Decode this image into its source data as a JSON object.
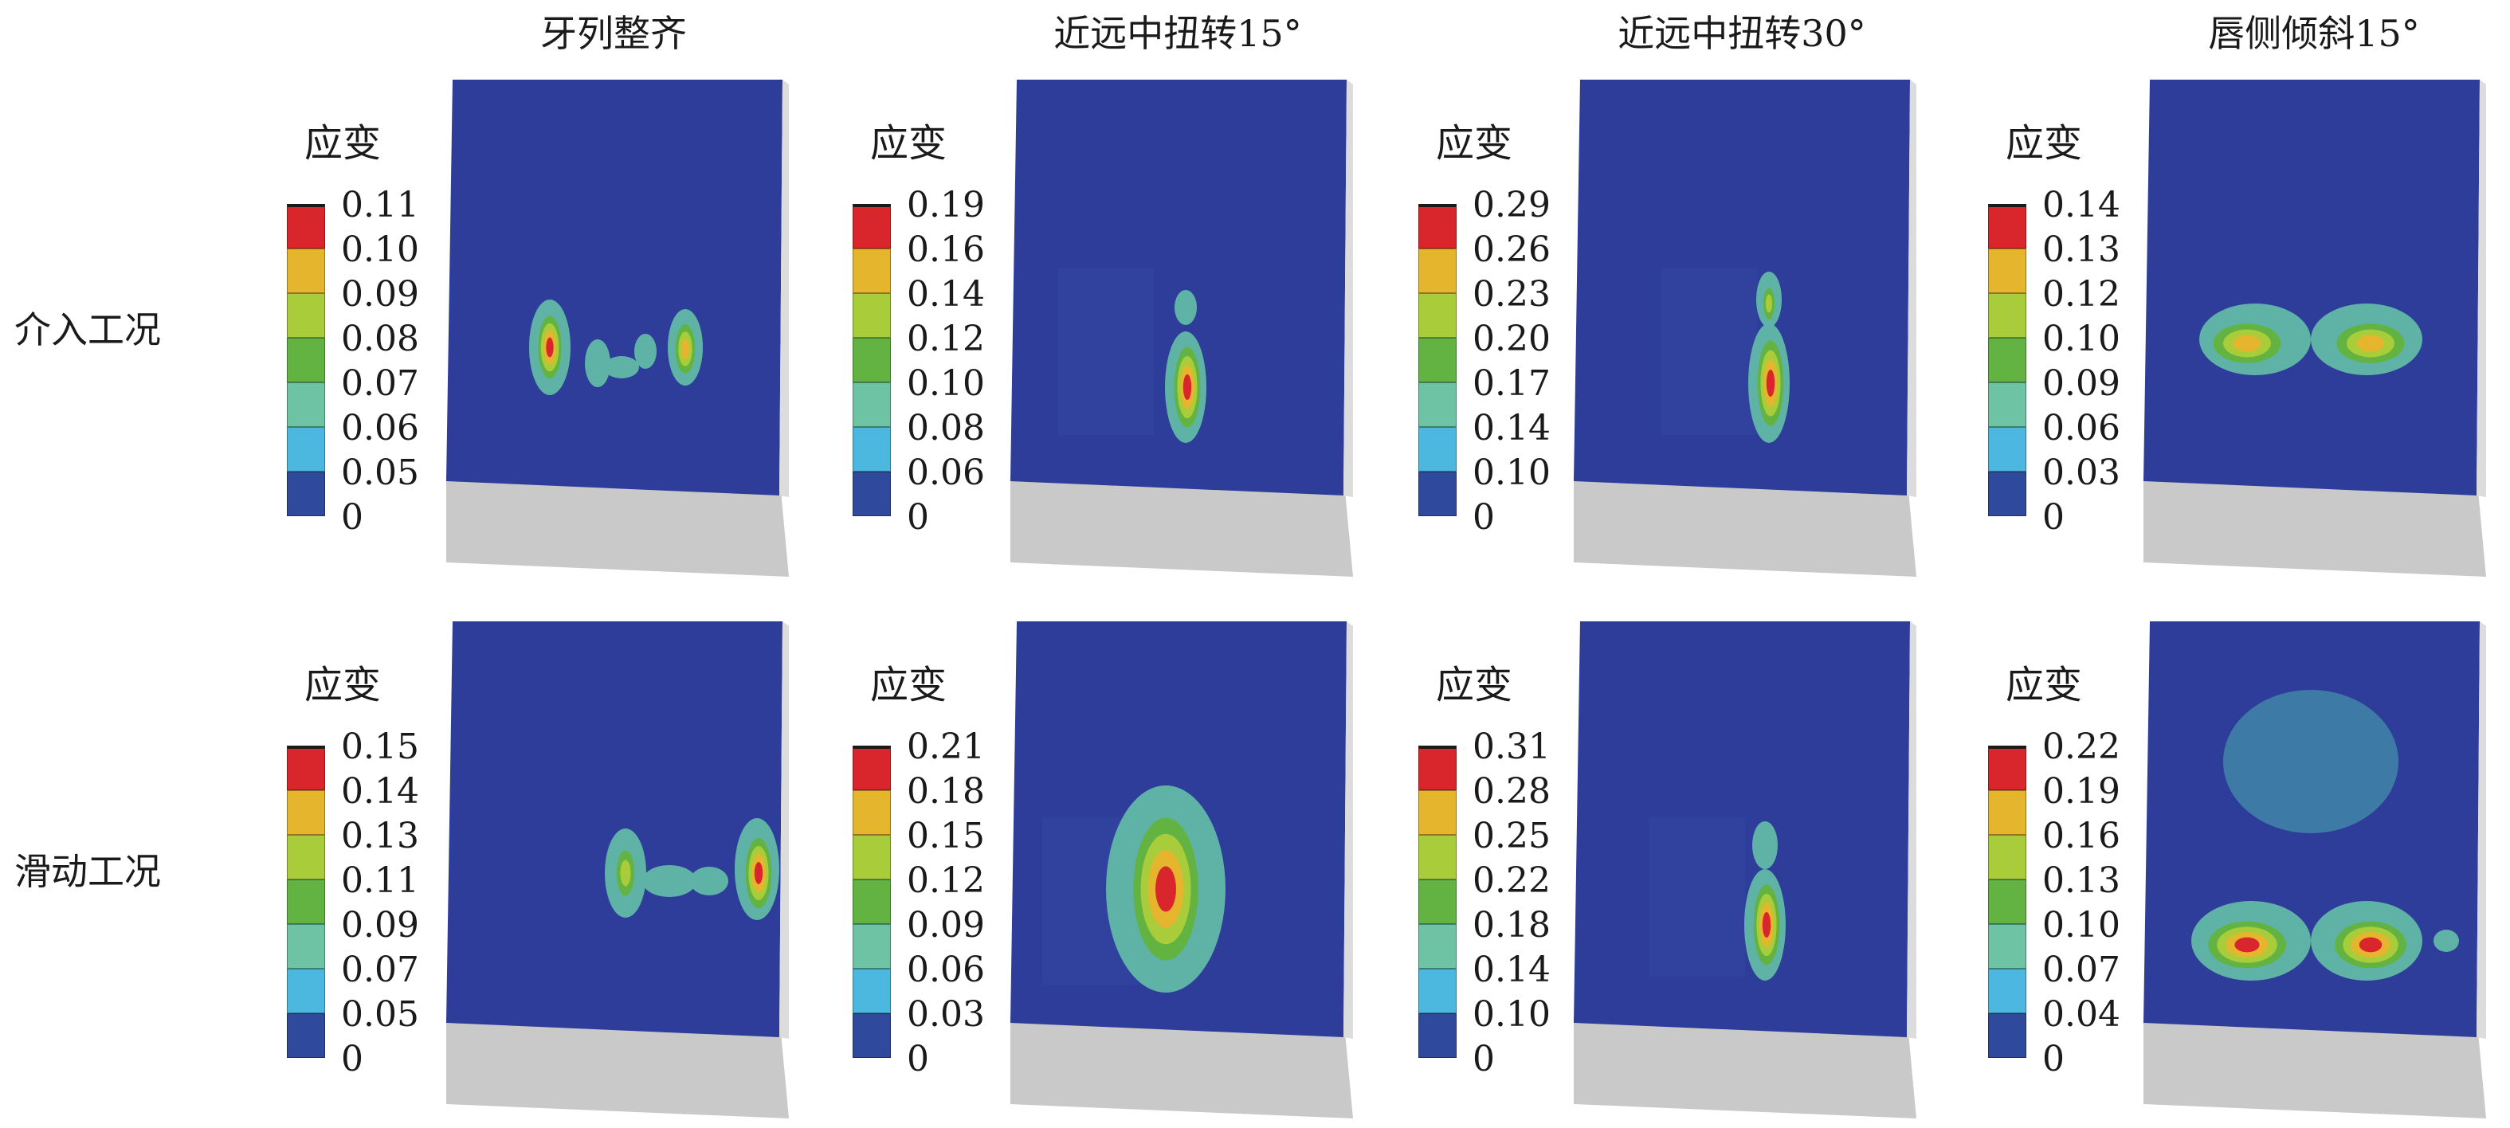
{
  "columns": [
    "牙列整齐",
    "近远中扭转15°",
    "近远中扭转30°",
    "唇侧倾斜15°"
  ],
  "rows": [
    "介入工况",
    "滑动工况"
  ],
  "legend_title": "应变",
  "colors": {
    "background_blue": "#2e3c9a",
    "base_gray": "#c9c9c9",
    "scale": [
      "#2f4a9c",
      "#4cb8e0",
      "#6dc3a4",
      "#62b342",
      "#a8cc3a",
      "#e6b52e",
      "#d8262c"
    ]
  },
  "panels": [
    {
      "id": "r1c1",
      "ticks": [
        "0.11",
        "0.10",
        "0.09",
        "0.08",
        "0.07",
        "0.06",
        "0.05",
        "0"
      ]
    },
    {
      "id": "r1c2",
      "ticks": [
        "0.19",
        "0.16",
        "0.14",
        "0.12",
        "0.10",
        "0.08",
        "0.06",
        "0"
      ]
    },
    {
      "id": "r1c3",
      "ticks": [
        "0.29",
        "0.26",
        "0.23",
        "0.20",
        "0.17",
        "0.14",
        "0.10",
        "0"
      ]
    },
    {
      "id": "r1c4",
      "ticks": [
        "0.14",
        "0.13",
        "0.12",
        "0.10",
        "0.09",
        "0.06",
        "0.03",
        "0"
      ]
    },
    {
      "id": "r2c1",
      "ticks": [
        "0.15",
        "0.14",
        "0.13",
        "0.11",
        "0.09",
        "0.07",
        "0.05",
        "0"
      ]
    },
    {
      "id": "r2c2",
      "ticks": [
        "0.21",
        "0.18",
        "0.15",
        "0.12",
        "0.09",
        "0.06",
        "0.03",
        "0"
      ]
    },
    {
      "id": "r2c3",
      "ticks": [
        "0.31",
        "0.28",
        "0.25",
        "0.22",
        "0.18",
        "0.14",
        "0.10",
        "0"
      ]
    },
    {
      "id": "r2c4",
      "ticks": [
        "0.22",
        "0.19",
        "0.16",
        "0.13",
        "0.10",
        "0.07",
        "0.04",
        "0"
      ]
    }
  ]
}
